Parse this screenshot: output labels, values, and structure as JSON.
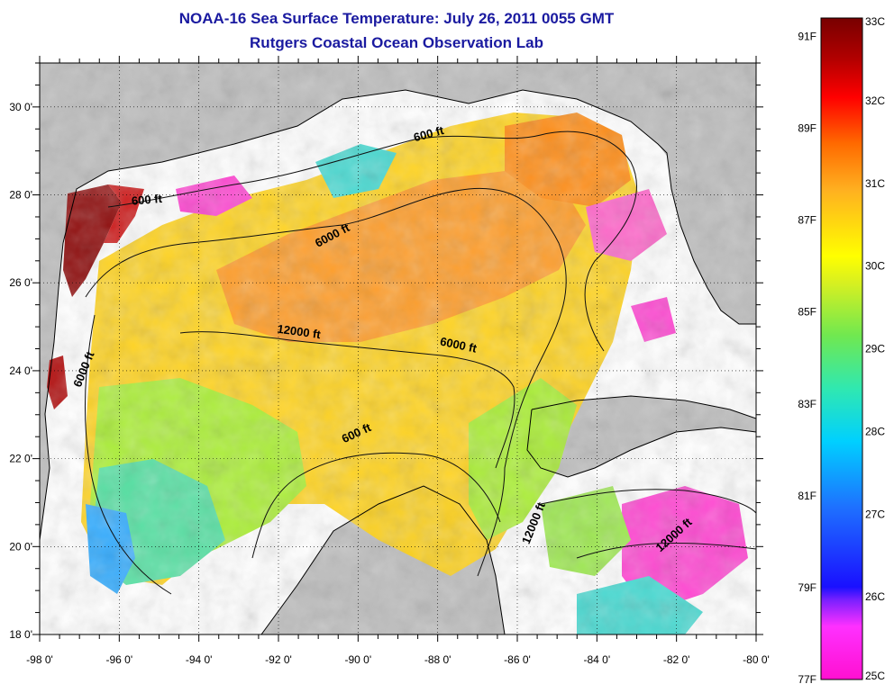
{
  "header": {
    "title": "NOAA-16 Sea Surface Temperature:  July 26, 2011 0055 GMT",
    "subtitle": "Rutgers Coastal Ocean Observation Lab"
  },
  "map": {
    "lon_range": [
      -98,
      -80
    ],
    "lat_range": [
      18,
      31
    ],
    "x_ticks": [
      "-98 0'",
      "-96 0'",
      "-94 0'",
      "-92 0'",
      "-90 0'",
      "-88 0'",
      "-86 0'",
      "-84 0'",
      "-82 0'",
      "-80 0'"
    ],
    "y_ticks": [
      "30 0'",
      "28 0'",
      "26 0'",
      "24 0'",
      "22 0'",
      "20 0'",
      "18 0'"
    ],
    "contour_labels": [
      {
        "text": "600 ft",
        "lon": -88.2,
        "lat": 29.3,
        "angle": -15
      },
      {
        "text": "600 ft",
        "lon": -95.3,
        "lat": 27.8,
        "angle": -5
      },
      {
        "text": "6000 ft",
        "lon": -90.6,
        "lat": 27.0,
        "angle": -28
      },
      {
        "text": "12000 ft",
        "lon": -91.5,
        "lat": 24.8,
        "angle": 8
      },
      {
        "text": "6000 ft",
        "lon": -87.5,
        "lat": 24.5,
        "angle": 12
      },
      {
        "text": "6000 ft",
        "lon": -96.8,
        "lat": 24.0,
        "angle": -68
      },
      {
        "text": "600 ft",
        "lon": -90.0,
        "lat": 22.5,
        "angle": -25
      },
      {
        "text": "12000 ft",
        "lon": -85.5,
        "lat": 20.5,
        "angle": -68
      },
      {
        "text": "12000 ft",
        "lon": -82.0,
        "lat": 20.2,
        "angle": -42
      }
    ]
  },
  "colorbar": {
    "celsius": [
      "33C",
      "32C",
      "31C",
      "30C",
      "29C",
      "28C",
      "27C",
      "26C",
      "25C"
    ],
    "fahrenheit": [
      "91F",
      "89F",
      "87F",
      "85F",
      "83F",
      "81F",
      "79F",
      "77F"
    ],
    "colors": [
      "#ff00cc",
      "#ff2cff",
      "#7722ff",
      "#1a1aff",
      "#1e6bff",
      "#00c8ff",
      "#2de0c0",
      "#5ee060",
      "#c8f020",
      "#ffff00",
      "#ffb020",
      "#ff6a00",
      "#ff0000",
      "#a00000",
      "#7a0000"
    ]
  }
}
